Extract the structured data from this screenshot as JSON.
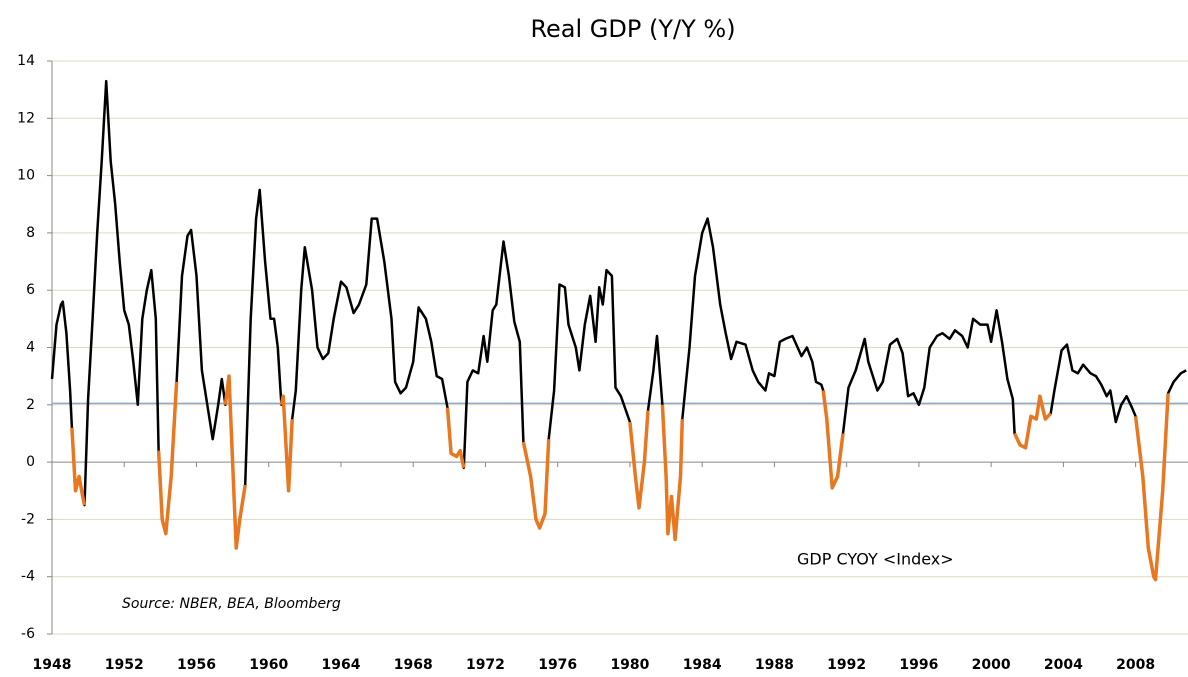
{
  "chart_data": {
    "type": "line",
    "title": "Real GDP (Y/Y %)",
    "x": [
      1948.0,
      1948.25,
      1948.5,
      1948.6,
      1948.8,
      1949.0,
      1949.1,
      1949.3,
      1949.5,
      1949.7,
      1949.8,
      1950.0,
      1950.25,
      1950.5,
      1950.75,
      1951.0,
      1951.25,
      1951.5,
      1951.75,
      1952.0,
      1952.25,
      1952.5,
      1952.75,
      1953.0,
      1953.25,
      1953.5,
      1953.75,
      1953.9,
      1954.1,
      1954.3,
      1954.6,
      1954.9,
      1955.2,
      1955.5,
      1955.7,
      1956.0,
      1956.3,
      1956.6,
      1956.9,
      1957.2,
      1957.4,
      1957.6,
      1957.8,
      1958.0,
      1958.2,
      1958.4,
      1958.7,
      1959.0,
      1959.3,
      1959.5,
      1959.8,
      1960.1,
      1960.3,
      1960.5,
      1960.7,
      1960.8,
      1961.1,
      1961.3,
      1961.5,
      1961.8,
      1962.0,
      1962.4,
      1962.7,
      1963.0,
      1963.3,
      1963.6,
      1964.0,
      1964.3,
      1964.7,
      1965.0,
      1965.4,
      1965.7,
      1966.0,
      1966.4,
      1966.8,
      1967.0,
      1967.3,
      1967.6,
      1968.0,
      1968.3,
      1968.7,
      1969.0,
      1969.3,
      1969.6,
      1969.9,
      1970.1,
      1970.4,
      1970.6,
      1970.8,
      1971.0,
      1971.3,
      1971.6,
      1971.9,
      1972.1,
      1972.4,
      1972.6,
      1973.0,
      1973.3,
      1973.6,
      1973.9,
      1974.1,
      1974.5,
      1974.8,
      1975.0,
      1975.3,
      1975.5,
      1975.8,
      1976.1,
      1976.4,
      1976.6,
      1977.0,
      1977.2,
      1977.5,
      1977.8,
      1978.1,
      1978.3,
      1978.5,
      1978.7,
      1979.0,
      1979.2,
      1979.5,
      1980.0,
      1980.3,
      1980.5,
      1980.8,
      1981.0,
      1981.3,
      1981.5,
      1981.8,
      1982.0,
      1982.1,
      1982.3,
      1982.5,
      1982.8,
      1982.9,
      1983.3,
      1983.6,
      1984.0,
      1984.3,
      1984.6,
      1985.0,
      1985.3,
      1985.6,
      1985.9,
      1986.4,
      1986.8,
      1987.1,
      1987.5,
      1987.7,
      1988.0,
      1988.3,
      1988.6,
      1989.0,
      1989.5,
      1989.8,
      1990.1,
      1990.3,
      1990.6,
      1990.7,
      1990.9,
      1991.2,
      1991.5,
      1991.8,
      1992.1,
      1992.5,
      1993.0,
      1993.2,
      1993.7,
      1994.0,
      1994.4,
      1994.8,
      1995.1,
      1995.4,
      1995.7,
      1996.0,
      1996.3,
      1996.6,
      1997.0,
      1997.3,
      1997.7,
      1998.0,
      1998.4,
      1998.7,
      1999.0,
      1999.4,
      1999.8,
      2000.0,
      2000.3,
      2000.6,
      2000.9,
      2001.2,
      2001.3,
      2001.6,
      2001.9,
      2002.2,
      2002.5,
      2002.7,
      2003.0,
      2003.3,
      2003.5,
      2003.9,
      2004.2,
      2004.5,
      2004.8,
      2005.1,
      2005.5,
      2005.8,
      2006.1,
      2006.4,
      2006.6,
      2006.9,
      2007.2,
      2007.5,
      2007.8,
      2008.0,
      2008.4,
      2008.7,
      2009.0,
      2009.1,
      2009.5,
      2009.8,
      2010.1,
      2010.5,
      2010.8
    ],
    "series": [
      {
        "name": "GDP CYOY <Index>",
        "color": "#000000",
        "values": [
          2.9,
          4.8,
          5.5,
          5.6,
          4.5,
          2.5,
          1.2,
          -1.0,
          -0.5,
          -1.2,
          -1.5,
          2.2,
          5.0,
          8.0,
          10.5,
          13.3,
          10.5,
          9.0,
          7.0,
          5.3,
          4.8,
          3.5,
          2.0,
          5.0,
          6.0,
          6.7,
          5.0,
          0.4,
          -2.0,
          -2.5,
          -0.5,
          2.8,
          6.5,
          7.9,
          8.1,
          6.5,
          3.2,
          2.0,
          0.8,
          2.0,
          2.9,
          2.0,
          3.0,
          0.0,
          -3.0,
          -2.0,
          -0.8,
          5.0,
          8.5,
          9.5,
          7.0,
          5.0,
          5.0,
          4.0,
          2.0,
          2.3,
          -1.0,
          1.5,
          2.5,
          6.0,
          7.5,
          6.0,
          4.0,
          3.6,
          3.8,
          5.0,
          6.3,
          6.1,
          5.2,
          5.5,
          6.2,
          8.5,
          8.5,
          7.0,
          5.0,
          2.8,
          2.4,
          2.6,
          3.5,
          5.4,
          5.0,
          4.2,
          3.0,
          2.9,
          1.9,
          0.3,
          0.2,
          0.4,
          -0.2,
          2.8,
          3.2,
          3.1,
          4.4,
          3.5,
          5.3,
          5.5,
          7.7,
          6.5,
          4.9,
          4.2,
          0.7,
          -0.5,
          -2.0,
          -2.3,
          -1.8,
          0.8,
          2.5,
          6.2,
          6.1,
          4.8,
          4.0,
          3.2,
          4.8,
          5.8,
          4.2,
          6.1,
          5.5,
          6.7,
          6.5,
          2.6,
          2.3,
          1.4,
          -0.5,
          -1.6,
          0.0,
          1.8,
          3.2,
          4.4,
          2.0,
          -0.5,
          -2.5,
          -1.2,
          -2.7,
          -0.5,
          1.5,
          4.0,
          6.5,
          8.0,
          8.5,
          7.5,
          5.5,
          4.5,
          3.6,
          4.2,
          4.1,
          3.2,
          2.8,
          2.5,
          3.1,
          3.0,
          4.2,
          4.3,
          4.4,
          3.7,
          4.0,
          3.5,
          2.8,
          2.7,
          2.5,
          1.5,
          -0.9,
          -0.5,
          1.0,
          2.6,
          3.2,
          4.3,
          3.5,
          2.5,
          2.8,
          4.1,
          4.3,
          3.8,
          2.3,
          2.4,
          2.0,
          2.6,
          4.0,
          4.4,
          4.5,
          4.3,
          4.6,
          4.4,
          4.0,
          5.0,
          4.8,
          4.8,
          4.2,
          5.3,
          4.2,
          2.9,
          2.2,
          1.0,
          0.6,
          0.5,
          1.6,
          1.5,
          2.3,
          1.5,
          1.7,
          2.5,
          3.9,
          4.1,
          3.2,
          3.1,
          3.4,
          3.1,
          3.0,
          2.7,
          2.3,
          2.5,
          1.4,
          2.0,
          2.3,
          1.9,
          1.6,
          -0.5,
          -3.0,
          -4.0,
          -4.1,
          -1.0,
          2.4,
          2.8,
          3.1,
          3.2
        ]
      }
    ],
    "highlight_color": "#e87722",
    "highlight_ranges": [
      [
        1949.1,
        1949.8
      ],
      [
        1953.9,
        1954.9
      ],
      [
        1957.6,
        1958.7
      ],
      [
        1960.7,
        1961.3
      ],
      [
        1969.9,
        1970.8
      ],
      [
        1974.1,
        1975.5
      ],
      [
        1980.0,
        1981.0
      ],
      [
        1981.8,
        1982.9
      ],
      [
        1990.7,
        1991.8
      ],
      [
        2001.3,
        2003.3
      ],
      [
        2008.0,
        2009.8
      ]
    ],
    "reference_line": {
      "value": 2.05,
      "color": "#8eaacb"
    },
    "annotations": [
      "Source: NBER, BEA, Bloomberg"
    ],
    "xlim": [
      1948,
      2010.9
    ],
    "xticks": [
      1948,
      1952,
      1956,
      1960,
      1964,
      1968,
      1972,
      1976,
      1980,
      1984,
      1988,
      1992,
      1996,
      2000,
      2004,
      2008
    ],
    "ylim": [
      -6,
      14
    ],
    "yticks": [
      -6,
      -4,
      -2,
      0,
      2,
      4,
      6,
      8,
      10,
      12,
      14
    ],
    "grid": true
  }
}
